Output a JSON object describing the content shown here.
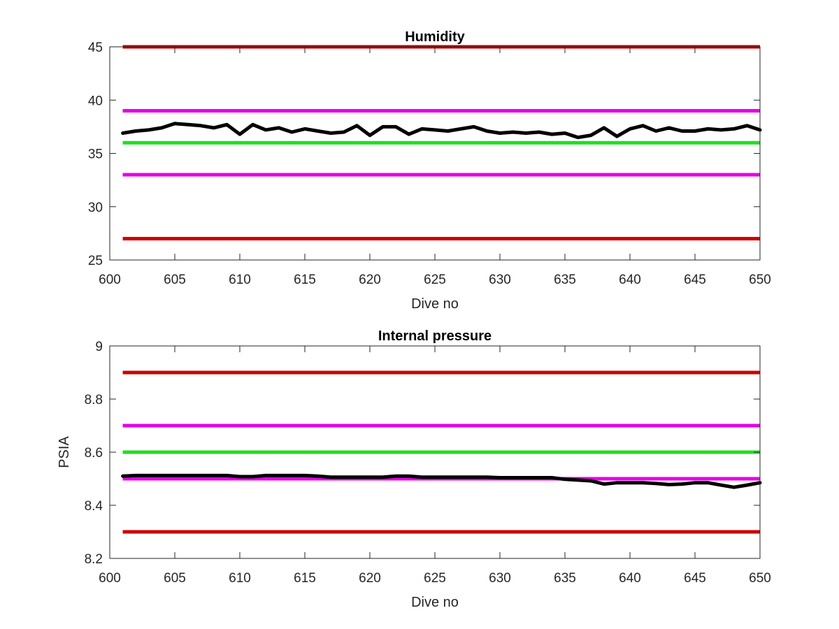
{
  "chart_data": [
    {
      "type": "line",
      "title": "Humidity",
      "xlabel": "Dive no",
      "ylabel": "",
      "xlim": [
        600,
        650
      ],
      "ylim": [
        25,
        45
      ],
      "xticks": [
        "600",
        "605",
        "610",
        "615",
        "620",
        "625",
        "630",
        "635",
        "640",
        "645",
        "650"
      ],
      "yticks": [
        "25",
        "30",
        "35",
        "40",
        "45"
      ],
      "grid": false,
      "x_range": [
        601,
        650
      ],
      "thresholds": [
        {
          "value": 45,
          "color": "#cc0000"
        },
        {
          "value": 39,
          "color": "#e600e6"
        },
        {
          "value": 36,
          "color": "#22dd22"
        },
        {
          "value": 33,
          "color": "#e600e6"
        },
        {
          "value": 27,
          "color": "#cc0000"
        }
      ],
      "series": [
        {
          "color": "#000000",
          "x": [
            601,
            602,
            603,
            604,
            605,
            606,
            607,
            608,
            609,
            610,
            611,
            612,
            613,
            614,
            615,
            616,
            617,
            618,
            619,
            620,
            621,
            622,
            623,
            624,
            625,
            626,
            627,
            628,
            629,
            630,
            631,
            632,
            633,
            634,
            635,
            636,
            637,
            638,
            639,
            640,
            641,
            642,
            643,
            644,
            645,
            646,
            647,
            648,
            649,
            650
          ],
          "values": [
            36.9,
            37.1,
            37.2,
            37.4,
            37.8,
            37.7,
            37.6,
            37.4,
            37.7,
            36.8,
            37.7,
            37.2,
            37.4,
            37.0,
            37.3,
            37.1,
            36.9,
            37.0,
            37.6,
            36.7,
            37.5,
            37.5,
            36.8,
            37.3,
            37.2,
            37.1,
            37.3,
            37.5,
            37.1,
            36.9,
            37.0,
            36.9,
            37.0,
            36.8,
            36.9,
            36.5,
            36.7,
            37.4,
            36.6,
            37.3,
            37.6,
            37.1,
            37.4,
            37.1,
            37.1,
            37.3,
            37.2,
            37.3,
            37.6,
            37.2
          ]
        }
      ]
    },
    {
      "type": "line",
      "title": "Internal pressure",
      "xlabel": "Dive no",
      "ylabel": "PSIA",
      "xlim": [
        600,
        650
      ],
      "ylim": [
        8.2,
        9.0
      ],
      "xticks": [
        "600",
        "605",
        "610",
        "615",
        "620",
        "625",
        "630",
        "635",
        "640",
        "645",
        "650"
      ],
      "yticks": [
        "8.2",
        "8.4",
        "8.6",
        "8.8",
        "9"
      ],
      "grid": false,
      "x_range": [
        601,
        650
      ],
      "thresholds": [
        {
          "value": 8.9,
          "color": "#cc0000"
        },
        {
          "value": 8.7,
          "color": "#e600e6"
        },
        {
          "value": 8.6,
          "color": "#22dd22"
        },
        {
          "value": 8.5,
          "color": "#e600e6"
        },
        {
          "value": 8.3,
          "color": "#cc0000"
        }
      ],
      "series": [
        {
          "color": "#000000",
          "x": [
            601,
            602,
            603,
            604,
            605,
            606,
            607,
            608,
            609,
            610,
            611,
            612,
            613,
            614,
            615,
            616,
            617,
            618,
            619,
            620,
            621,
            622,
            623,
            624,
            625,
            626,
            627,
            628,
            629,
            630,
            631,
            632,
            633,
            634,
            635,
            636,
            637,
            638,
            639,
            640,
            641,
            642,
            643,
            644,
            645,
            646,
            647,
            648,
            649,
            650
          ],
          "values": [
            8.51,
            8.512,
            8.512,
            8.512,
            8.512,
            8.512,
            8.512,
            8.512,
            8.512,
            8.508,
            8.508,
            8.512,
            8.512,
            8.512,
            8.512,
            8.51,
            8.506,
            8.506,
            8.506,
            8.506,
            8.506,
            8.51,
            8.51,
            8.506,
            8.506,
            8.506,
            8.506,
            8.506,
            8.506,
            8.504,
            8.504,
            8.504,
            8.504,
            8.504,
            8.498,
            8.495,
            8.492,
            8.48,
            8.485,
            8.485,
            8.485,
            8.482,
            8.478,
            8.48,
            8.485,
            8.485,
            8.476,
            8.468,
            8.476,
            8.485
          ]
        }
      ]
    }
  ]
}
